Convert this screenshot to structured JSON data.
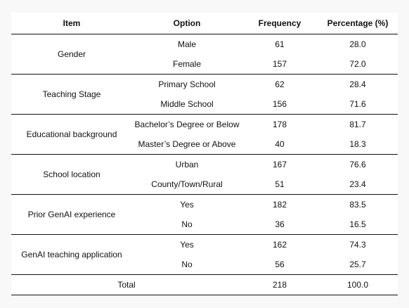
{
  "table": {
    "headers": {
      "item": "Item",
      "option": "Option",
      "frequency": "Frequency",
      "percentage": "Percentage (%)"
    },
    "groups": [
      {
        "item": "Gender",
        "rows": [
          {
            "option": "Male",
            "frequency": "61",
            "percentage": "28.0"
          },
          {
            "option": "Female",
            "frequency": "157",
            "percentage": "72.0"
          }
        ]
      },
      {
        "item": "Teaching Stage",
        "rows": [
          {
            "option": "Primary School",
            "frequency": "62",
            "percentage": "28.4"
          },
          {
            "option": "Middle School",
            "frequency": "156",
            "percentage": "71.6"
          }
        ]
      },
      {
        "item": "Educational background",
        "rows": [
          {
            "option": "Bachelor’s Degree or Below",
            "frequency": "178",
            "percentage": "81.7"
          },
          {
            "option": "Master’s Degree or Above",
            "frequency": "40",
            "percentage": "18.3"
          }
        ]
      },
      {
        "item": "School location",
        "rows": [
          {
            "option": "Urban",
            "frequency": "167",
            "percentage": "76.6"
          },
          {
            "option": "County/Town/Rural",
            "frequency": "51",
            "percentage": "23.4"
          }
        ]
      },
      {
        "item": "Prior GenAI experience",
        "rows": [
          {
            "option": "Yes",
            "frequency": "182",
            "percentage": "83.5"
          },
          {
            "option": "No",
            "frequency": "36",
            "percentage": "16.5"
          }
        ]
      },
      {
        "item": "GenAI teaching application",
        "rows": [
          {
            "option": "Yes",
            "frequency": "162",
            "percentage": "74.3"
          },
          {
            "option": "No",
            "frequency": "56",
            "percentage": "25.7"
          }
        ]
      }
    ],
    "total": {
      "label": "Total",
      "frequency": "218",
      "percentage": "100.0"
    }
  }
}
